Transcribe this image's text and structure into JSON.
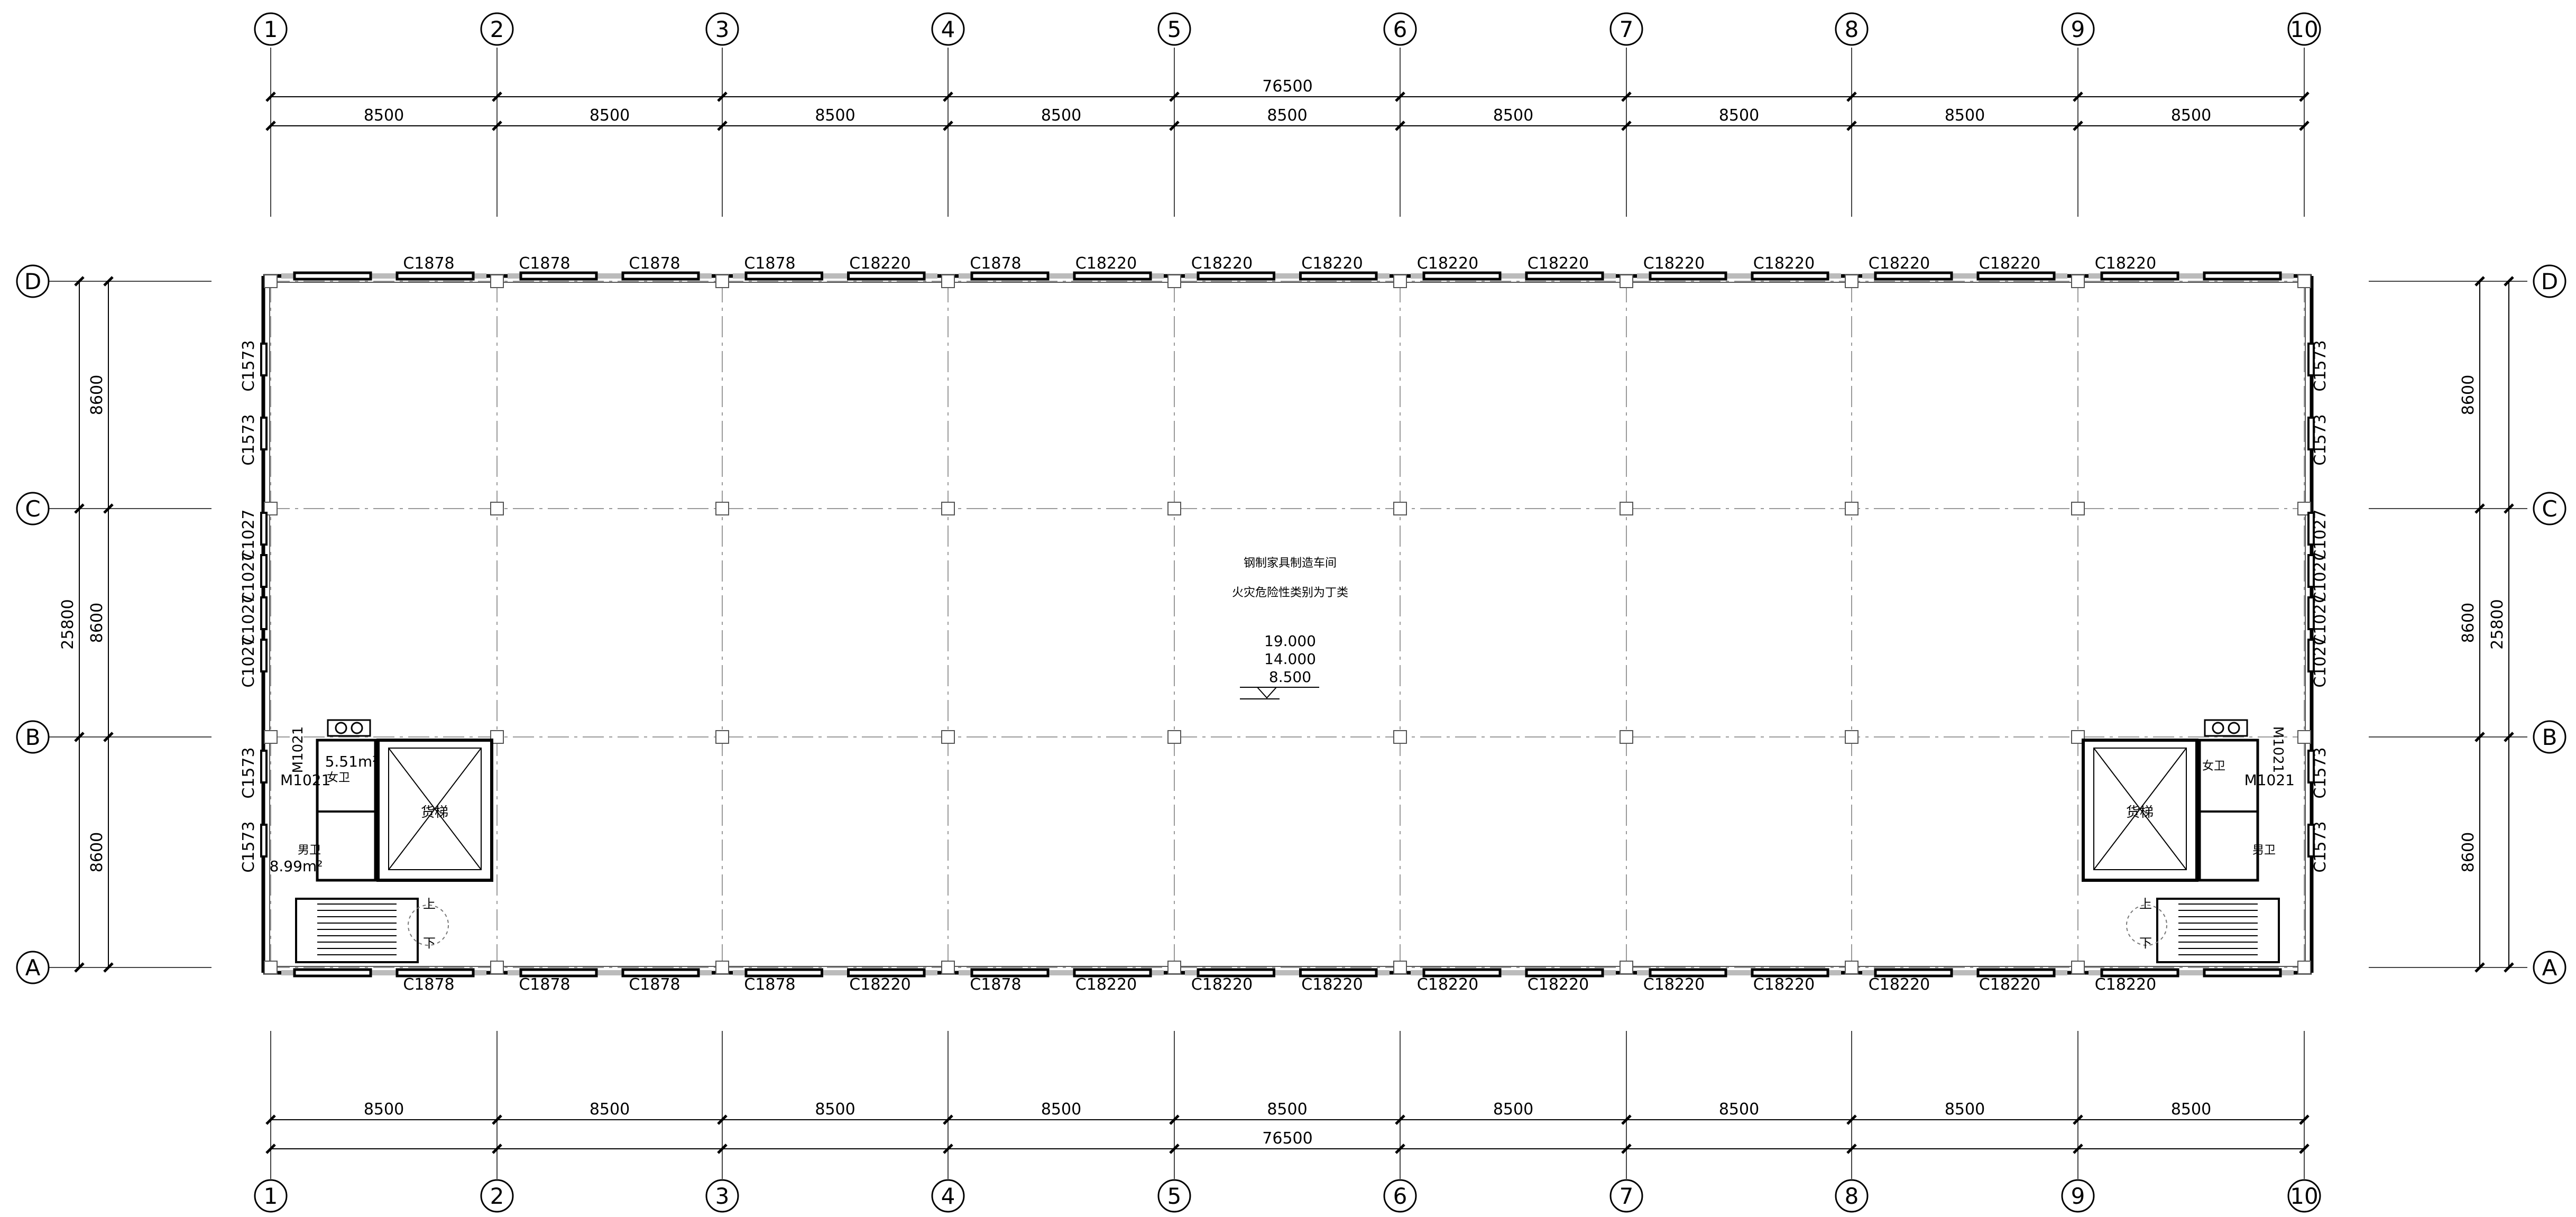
{
  "axes": {
    "columns": [
      "1",
      "2",
      "3",
      "4",
      "5",
      "6",
      "7",
      "8",
      "9",
      "10"
    ],
    "rows": [
      "D",
      "C",
      "B",
      "A"
    ]
  },
  "dimensions": {
    "total_horizontal": "76500",
    "bay_horizontal": [
      "8500",
      "8500",
      "8500",
      "8500",
      "8500",
      "8500",
      "8500",
      "8500",
      "8500"
    ],
    "bay_vertical": [
      "8600",
      "8600",
      "8600"
    ],
    "total_vertical": "25800"
  },
  "windows": {
    "top": [
      "C1878",
      "C1878",
      "C1878",
      "C1878",
      "C18220",
      "C1878",
      "C18220",
      "C18220",
      "C18220",
      "C18220",
      "C18220",
      "C18220",
      "C18220",
      "C18220",
      "C18220",
      "C18220"
    ],
    "bottom": [
      "C1878",
      "C1878",
      "C1878",
      "C1878",
      "C18220",
      "C1878",
      "C18220",
      "C18220",
      "C18220",
      "C18220",
      "C18220",
      "C18220",
      "C18220",
      "C18220",
      "C18220",
      "C18220"
    ],
    "left": [
      "C1573",
      "C1573",
      "C1027",
      "C1027",
      "C1027",
      "C1027",
      "C1573",
      "C1573"
    ],
    "right": [
      "C1573",
      "C1573",
      "C1027",
      "C1027",
      "C1027",
      "C1027",
      "C1573",
      "C1573"
    ]
  },
  "center_labels": {
    "title": "钢制家具制造车间",
    "fire_class": "火灾危险性类别为丁类",
    "elevations": [
      "19.000",
      "14.000",
      "8.500"
    ]
  },
  "rooms": {
    "left": {
      "door": "M1021",
      "female": "女卫",
      "female_area": "5.51m²",
      "male": "男卫",
      "male_area": "8.99m²",
      "elevator": "货梯",
      "stair_up": "上",
      "stair_down": "下"
    },
    "right": {
      "door": "M1021",
      "female": "女卫",
      "male": "男卫",
      "elevator": "货梯",
      "stair_up": "上",
      "stair_down": "下"
    }
  }
}
